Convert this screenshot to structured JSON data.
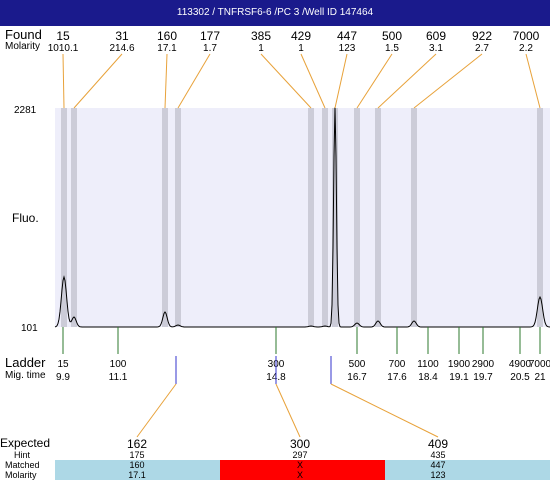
{
  "title": "113302 / TNFRSF6-6 /PC 3 /Well ID 147464",
  "row_labels": {
    "found": "Found",
    "molarity": "Molarity",
    "fluo": "Fluo.",
    "ladder": "Ladder",
    "mig_time": "Mig. time",
    "expected": "Expected",
    "hint": "Hint",
    "matched": "Matched",
    "molarity_bottom": "Molarity"
  },
  "y_axis": {
    "top_label": "2281",
    "bottom_label": "101"
  },
  "colors": {
    "title_bg": "#1a1a8c",
    "plot_bg": "#eeeefa",
    "band": "#c8c8d4",
    "found_line": "#e8a23a",
    "ladder_line": "#2d7a2d",
    "guide_line": "#3333cc",
    "matched_ok": "#add8e6",
    "matched_bad": "#ff0000"
  },
  "chart_data": {
    "type": "line",
    "title": "113302 / TNFRSF6-6 /PC 3 /Well ID 147464",
    "ylabel": "Fluo.",
    "ylim": [
      101,
      2281
    ],
    "found_peaks": [
      {
        "size": "15",
        "molarity": "1010.1"
      },
      {
        "size": "31",
        "molarity": "214.6"
      },
      {
        "size": "160",
        "molarity": "17.1"
      },
      {
        "size": "177",
        "molarity": "1.7"
      },
      {
        "size": "385",
        "molarity": "1"
      },
      {
        "size": "429",
        "molarity": "1"
      },
      {
        "size": "447",
        "molarity": "123"
      },
      {
        "size": "500",
        "molarity": "1.5"
      },
      {
        "size": "609",
        "molarity": "3.1"
      },
      {
        "size": "922",
        "molarity": "2.7"
      },
      {
        "size": "7000",
        "molarity": "2.2"
      }
    ],
    "ladder": [
      {
        "size": "15",
        "mig_time": "9.9"
      },
      {
        "size": "100",
        "mig_time": "11.1"
      },
      {
        "size": "300",
        "mig_time": "14.8"
      },
      {
        "size": "500",
        "mig_time": "16.7"
      },
      {
        "size": "700",
        "mig_time": "17.6"
      },
      {
        "size": "1100",
        "mig_time": "18.4"
      },
      {
        "size": "1900",
        "mig_time": "19.1"
      },
      {
        "size": "2900",
        "mig_time": "19.7"
      },
      {
        "size": "4900",
        "mig_time": "20.5"
      },
      {
        "size": "7000",
        "mig_time": "21"
      }
    ],
    "expected": [
      {
        "expected": "162",
        "hint": "175",
        "matched": "160",
        "molarity": "17.1",
        "status": "ok"
      },
      {
        "expected": "300",
        "hint": "297",
        "matched": "X",
        "molarity": "X",
        "status": "missing"
      },
      {
        "expected": "409",
        "hint": "435",
        "matched": "447",
        "molarity": "123",
        "status": "ok"
      }
    ]
  }
}
